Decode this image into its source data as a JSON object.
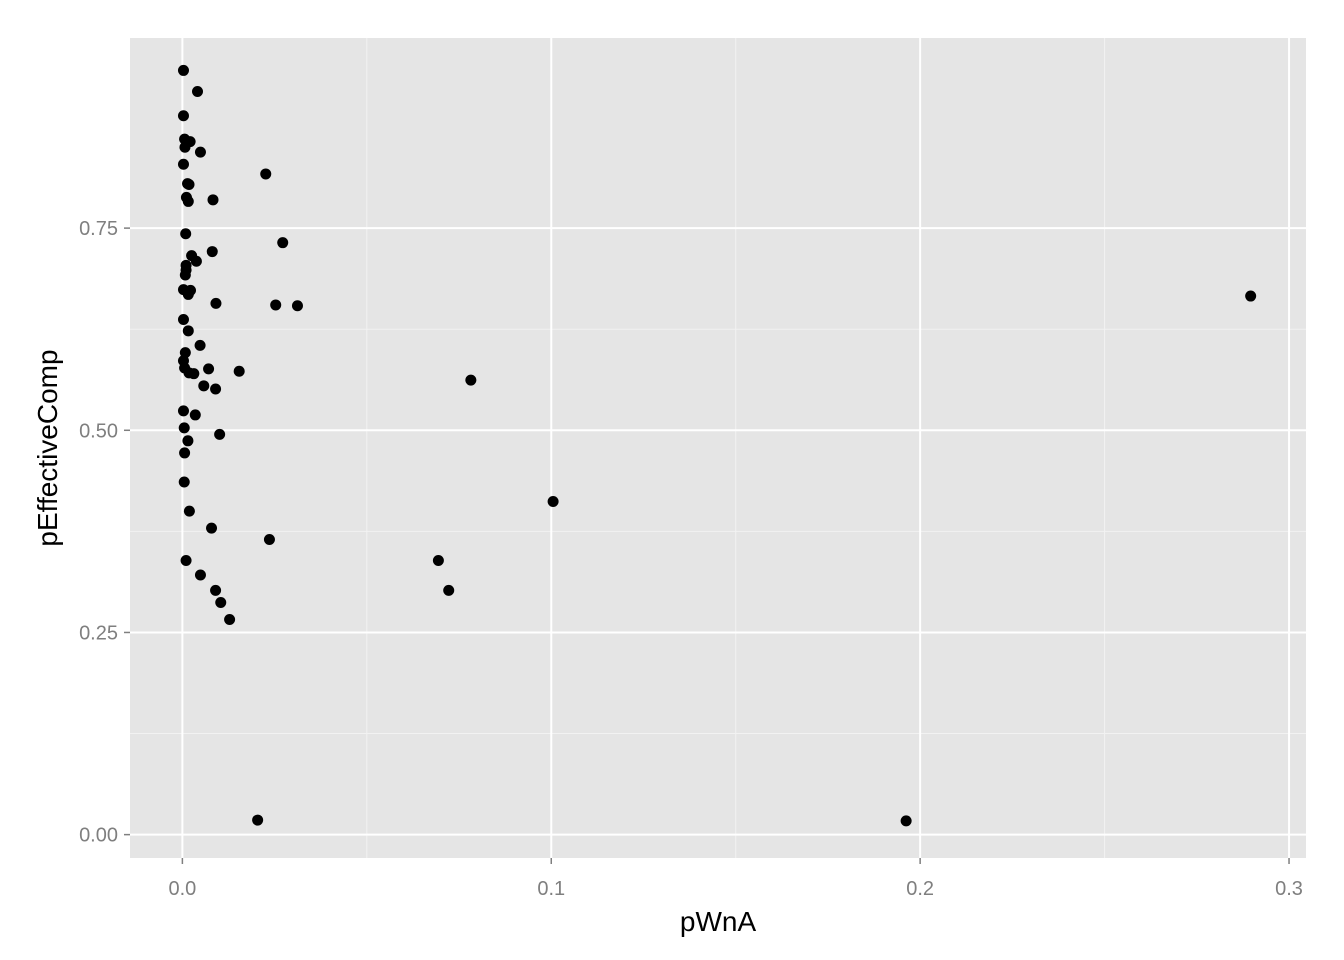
{
  "chart_data": {
    "type": "scatter",
    "title": "",
    "xlabel": "pWnA",
    "ylabel": "pEffectiveComp",
    "xlim": [
      -0.0142,
      0.3046
    ],
    "ylim": [
      -0.0289,
      0.9851
    ],
    "x_ticks": [
      0.0,
      0.1,
      0.2,
      0.3
    ],
    "x_tick_labels": [
      "0.0",
      "0.1",
      "0.2",
      "0.3"
    ],
    "y_ticks": [
      0.0,
      0.25,
      0.5,
      0.75
    ],
    "y_tick_labels": [
      "0.00",
      "0.25",
      "0.50",
      "0.75"
    ],
    "grid": true,
    "colors": {
      "panel": "#e5e5e5",
      "grid_major": "#ffffff",
      "grid_minor": "#f2f2f2",
      "point": "#000000",
      "tick_text": "#7f7f7f"
    },
    "series": [
      {
        "x": [
          0.0003,
          0.0041,
          0.0003,
          0.0006,
          0.0021,
          0.0049,
          0.0007,
          0.0003,
          0.0226,
          0.0014,
          0.0018,
          0.0011,
          0.0016,
          0.0083,
          0.0009,
          0.0272,
          0.0081,
          0.0025,
          0.0038,
          0.001,
          0.001,
          0.0008,
          0.0003,
          0.0022,
          0.0016,
          0.0091,
          0.0253,
          0.0312,
          0.0003,
          0.0016,
          0.0048,
          0.0008,
          0.0003,
          0.0006,
          0.0071,
          0.0018,
          0.0031,
          0.0154,
          0.0782,
          0.0058,
          0.009,
          0.0003,
          0.0035,
          0.0005,
          0.0101,
          0.0015,
          0.0006,
          0.0005,
          0.0019,
          0.1005,
          0.0079,
          0.0236,
          0.001,
          0.0694,
          0.0049,
          0.0722,
          0.009,
          0.0104,
          0.0128,
          0.0204,
          0.1962,
          0.2896
        ],
        "y": [
          0.945,
          0.919,
          0.889,
          0.86,
          0.857,
          0.844,
          0.85,
          0.829,
          0.817,
          0.805,
          0.804,
          0.788,
          0.783,
          0.785,
          0.743,
          0.732,
          0.721,
          0.716,
          0.709,
          0.704,
          0.698,
          0.692,
          0.674,
          0.673,
          0.668,
          0.657,
          0.655,
          0.654,
          0.637,
          0.623,
          0.605,
          0.596,
          0.586,
          0.577,
          0.576,
          0.571,
          0.57,
          0.573,
          0.562,
          0.555,
          0.551,
          0.524,
          0.519,
          0.503,
          0.495,
          0.487,
          0.472,
          0.436,
          0.4,
          0.412,
          0.379,
          0.365,
          0.339,
          0.339,
          0.321,
          0.302,
          0.302,
          0.287,
          0.266,
          0.018,
          0.017,
          0.666
        ]
      }
    ]
  }
}
